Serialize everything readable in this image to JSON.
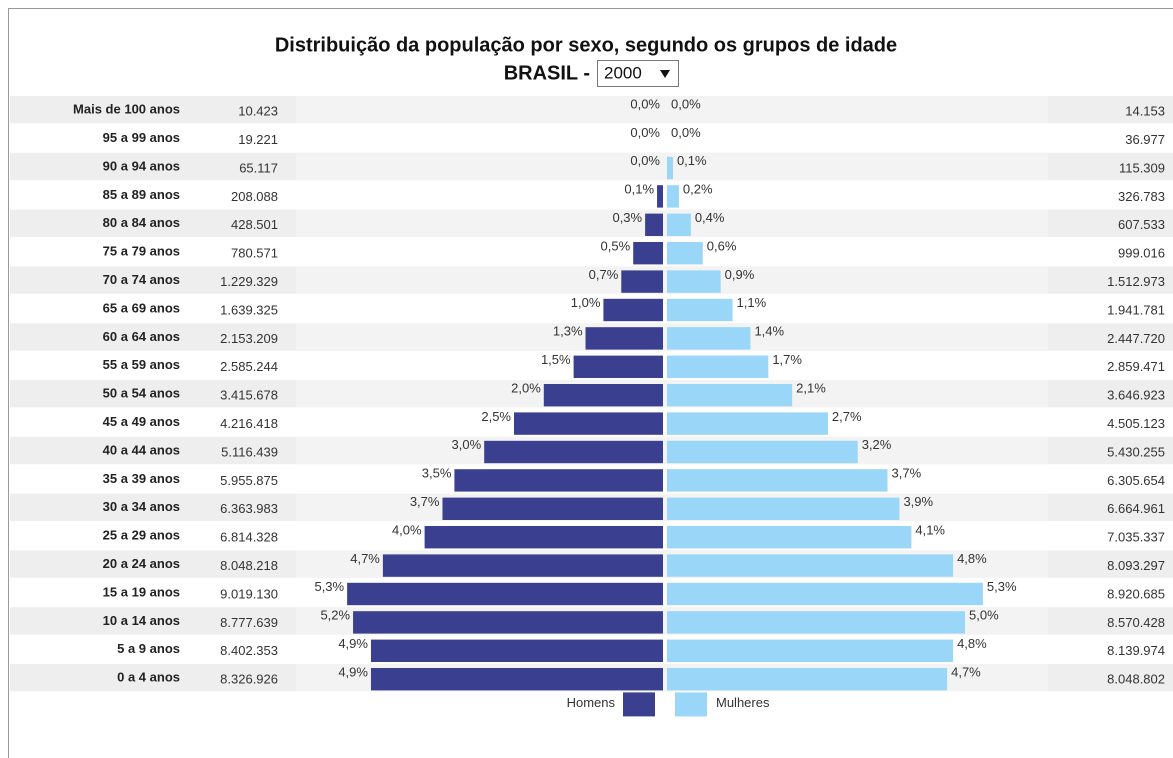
{
  "chart_data": {
    "type": "pyramid",
    "title": "Distribuição da população por sexo, segundo os grupos de idade",
    "subtitle": "BRASIL -",
    "selected_year": "2000",
    "categories": [
      "Mais de 100 anos",
      "95 a 99 anos",
      "90 a 94 anos",
      "85 a 89 anos",
      "80 a 84 anos",
      "75 a 79 anos",
      "70 a 74 anos",
      "65 a 69 anos",
      "60 a 64 anos",
      "55 a 59 anos",
      "50 a 54 anos",
      "45 a 49 anos",
      "40 a 44 anos",
      "35 a 39 anos",
      "30 a 34 anos",
      "25 a 29 anos",
      "20 a 24 anos",
      "15 a 19 anos",
      "10 a 14 anos",
      "5 a 9 anos",
      "0 a 4 anos"
    ],
    "series": [
      {
        "name": "Homens",
        "color": "#3b3f8f",
        "values": [
          0.0,
          0.0,
          0.0,
          0.1,
          0.3,
          0.5,
          0.7,
          1.0,
          1.3,
          1.5,
          2.0,
          2.5,
          3.0,
          3.5,
          3.7,
          4.0,
          4.7,
          5.3,
          5.2,
          4.9,
          4.9
        ],
        "value_labels": [
          "0,0%",
          "0,0%",
          "0,0%",
          "0,1%",
          "0,3%",
          "0,5%",
          "0,7%",
          "1,0%",
          "1,3%",
          "1,5%",
          "2,0%",
          "2,5%",
          "3,0%",
          "3,5%",
          "3,7%",
          "4,0%",
          "4,7%",
          "5,3%",
          "5,2%",
          "4,9%",
          "4,9%"
        ],
        "counts": [
          "10.423",
          "19.221",
          "65.117",
          "208.088",
          "428.501",
          "780.571",
          "1.229.329",
          "1.639.325",
          "2.153.209",
          "2.585.244",
          "3.415.678",
          "4.216.418",
          "5.116.439",
          "5.955.875",
          "6.363.983",
          "6.814.328",
          "8.048.218",
          "9.019.130",
          "8.777.639",
          "8.402.353",
          "8.326.926"
        ]
      },
      {
        "name": "Mulheres",
        "color": "#99d6f7",
        "values": [
          0.0,
          0.0,
          0.1,
          0.2,
          0.4,
          0.6,
          0.9,
          1.1,
          1.4,
          1.7,
          2.1,
          2.7,
          3.2,
          3.7,
          3.9,
          4.1,
          4.8,
          5.3,
          5.0,
          4.8,
          4.7
        ],
        "value_labels": [
          "0,0%",
          "0,0%",
          "0,1%",
          "0,2%",
          "0,4%",
          "0,6%",
          "0,9%",
          "1,1%",
          "1,4%",
          "1,7%",
          "2,1%",
          "2,7%",
          "3,2%",
          "3,7%",
          "3,9%",
          "4,1%",
          "4,8%",
          "5,3%",
          "5,0%",
          "4,8%",
          "4,7%"
        ],
        "counts": [
          "14.153",
          "36.977",
          "115.309",
          "326.783",
          "607.533",
          "999.016",
          "1.512.973",
          "1.941.781",
          "2.447.720",
          "2.859.471",
          "3.646.923",
          "4.505.123",
          "5.430.255",
          "6.305.654",
          "6.664.961",
          "7.035.337",
          "8.093.297",
          "8.920.685",
          "8.570.428",
          "8.139.974",
          "8.048.802"
        ]
      }
    ]
  }
}
